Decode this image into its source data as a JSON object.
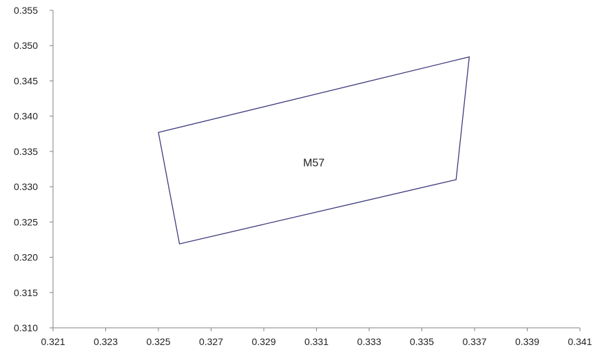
{
  "chart_data": {
    "type": "line",
    "title": "",
    "xlabel": "",
    "ylabel": "",
    "xlim": [
      0.321,
      0.341
    ],
    "ylim": [
      0.31,
      0.355
    ],
    "x_ticks": [
      "0.321",
      "0.323",
      "0.325",
      "0.327",
      "0.329",
      "0.331",
      "0.333",
      "0.335",
      "0.337",
      "0.339",
      "0.341"
    ],
    "y_ticks": [
      "0.310",
      "0.315",
      "0.320",
      "0.325",
      "0.330",
      "0.335",
      "0.340",
      "0.345",
      "0.350",
      "0.355"
    ],
    "grid": false,
    "series": [
      {
        "closed": true,
        "color": "#3d3a7c",
        "points": [
          {
            "x": 0.325,
            "y": 0.3377
          },
          {
            "x": 0.3368,
            "y": 0.3484
          },
          {
            "x": 0.3363,
            "y": 0.331
          },
          {
            "x": 0.3258,
            "y": 0.3219
          }
        ]
      }
    ],
    "annotations": [
      {
        "text": "M57",
        "x": 0.3309,
        "y": 0.3335
      }
    ]
  }
}
